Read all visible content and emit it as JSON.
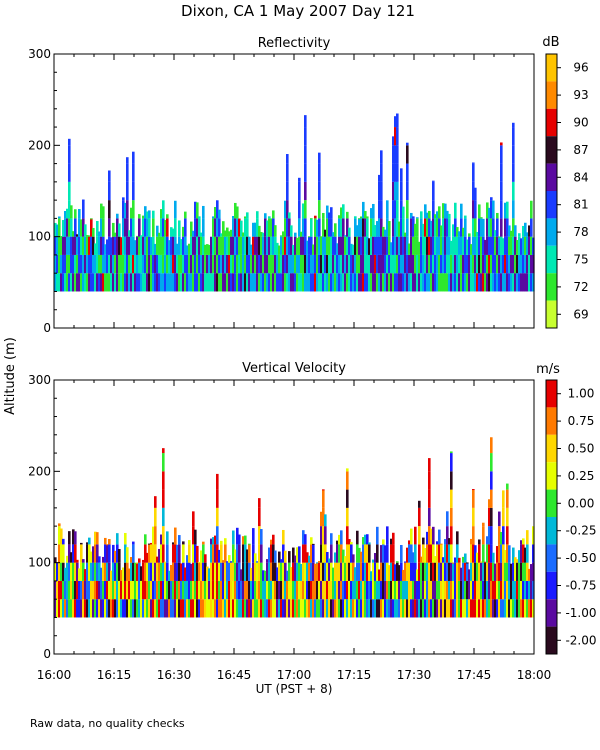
{
  "title": "Dixon, CA   1 May 2007   Day 121",
  "footnote": "Raw data, no quality checks",
  "ylabel": "Altitude (m)",
  "xlabel": "UT   (PST + 8)",
  "chart_data": [
    {
      "type": "heatmap",
      "title": "Reflectivity",
      "colorbar_unit": "dB",
      "colorbar_labels": [
        "96",
        "93",
        "90",
        "87",
        "84",
        "81",
        "78",
        "75",
        "72",
        "69"
      ],
      "colorbar_colors": [
        "#ffc400",
        "#ff8a00",
        "#e60000",
        "#2a0a1e",
        "#5a0aa0",
        "#1a3cff",
        "#00aaee",
        "#00e8b4",
        "#2ee82e",
        "#c8ff30"
      ],
      "x_ticks": [
        "16:00",
        "16:15",
        "16:30",
        "16:45",
        "17:00",
        "17:15",
        "17:30",
        "17:45",
        "18:00"
      ],
      "xlim_minutes_after_1600": [
        0,
        120
      ],
      "ylim": [
        0,
        300
      ],
      "y_ticks": [
        "0",
        "100",
        "200",
        "300"
      ],
      "data_altitude_range_m": [
        40,
        240
      ]
    },
    {
      "type": "heatmap",
      "title": "Vertical Velocity",
      "colorbar_unit": "m/s",
      "colorbar_labels": [
        "1.00",
        "0.75",
        "0.50",
        "0.25",
        "0.00",
        "-0.25",
        "-0.50",
        "-0.75",
        "-1.00",
        "-2.00"
      ],
      "colorbar_colors": [
        "#e60000",
        "#ff7a00",
        "#ffd700",
        "#e6ff00",
        "#2ee82e",
        "#00b8d8",
        "#1a6cff",
        "#1a1aff",
        "#5a0aa0",
        "#2a0a1e"
      ],
      "x_ticks": [
        "16:00",
        "16:15",
        "16:30",
        "16:45",
        "17:00",
        "17:15",
        "17:30",
        "17:45",
        "18:00"
      ],
      "xlim_minutes_after_1600": [
        0,
        120
      ],
      "ylim": [
        0,
        300
      ],
      "y_ticks": [
        "0",
        "100",
        "200",
        "300"
      ],
      "data_altitude_range_m": [
        40,
        240
      ]
    }
  ]
}
